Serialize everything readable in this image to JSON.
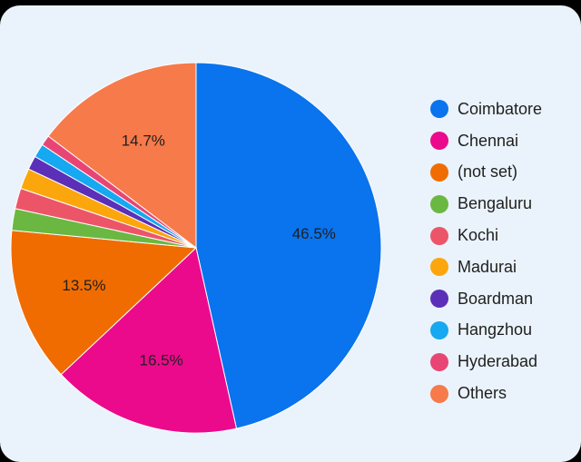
{
  "chart_data": {
    "type": "pie",
    "legend_position": "right",
    "slices": [
      {
        "name": "Coimbatore",
        "value": 46.5,
        "label": "46.5%",
        "color": "#0a73ee"
      },
      {
        "name": "Chennai",
        "value": 16.5,
        "label": "16.5%",
        "color": "#eb0a8c"
      },
      {
        "name": "(not set)",
        "value": 13.5,
        "label": "13.5%",
        "color": "#f06c00"
      },
      {
        "name": "Bengaluru",
        "value": 1.9,
        "label": "",
        "color": "#6ab842"
      },
      {
        "name": "Kochi",
        "value": 1.8,
        "label": "",
        "color": "#ec5568"
      },
      {
        "name": "Madurai",
        "value": 1.8,
        "label": "",
        "color": "#fca60d"
      },
      {
        "name": "Boardman",
        "value": 1.2,
        "label": "",
        "color": "#5b2fb8"
      },
      {
        "name": "Hangzhou",
        "value": 1.2,
        "label": "",
        "color": "#16a8f0"
      },
      {
        "name": "Hyderabad",
        "value": 0.9,
        "label": "",
        "color": "#e84575"
      },
      {
        "name": "Others",
        "value": 14.7,
        "label": "14.7%",
        "color": "#f77a4a"
      }
    ]
  }
}
